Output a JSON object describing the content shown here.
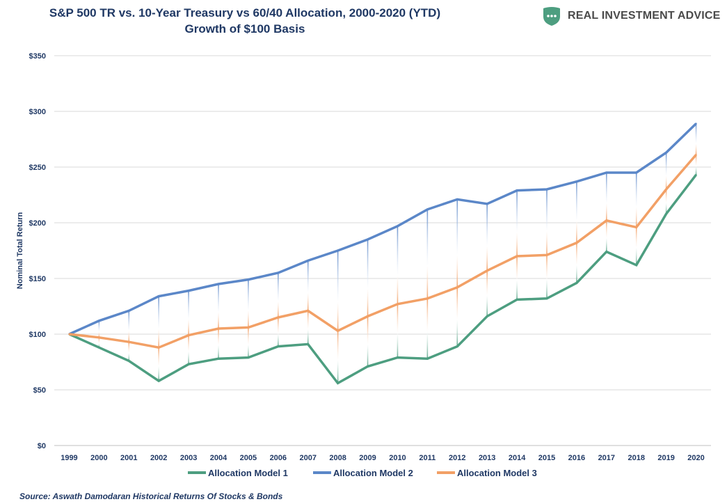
{
  "title_line1": "S&P 500 TR vs. 10-Year Treasury vs 60/40 Allocation, 2000-2020 (YTD)",
  "title_line2": "Growth of $100 Basis",
  "brand": "REAL INVESTMENT ADVICE",
  "source": "Source: Aswath Damodaran Historical Returns Of Stocks & Bonds",
  "colors": {
    "model1": "#4d9e80",
    "model2": "#5b87c8",
    "model3": "#f2a066",
    "title": "#1f3864",
    "grid": "#d9d9d9"
  },
  "chart_data": {
    "type": "line",
    "ylabel": "Nominal Total Return",
    "ylim": [
      0,
      350
    ],
    "yticks": [
      0,
      50,
      100,
      150,
      200,
      250,
      300,
      350
    ],
    "ytick_labels": [
      "$0",
      "$50",
      "$100",
      "$150",
      "$200",
      "$250",
      "$300",
      "$350"
    ],
    "categories": [
      "1999",
      "2000",
      "2001",
      "2002",
      "2003",
      "2004",
      "2005",
      "2006",
      "2007",
      "2008",
      "2009",
      "2010",
      "2011",
      "2012",
      "2013",
      "2014",
      "2015",
      "2016",
      "2017",
      "2018",
      "2019",
      "2020"
    ],
    "grid": "horizontal",
    "legend_position": "bottom",
    "drop_lines": true,
    "series": [
      {
        "name": "Allocation Model 1",
        "color": "#4d9e80",
        "values": [
          100,
          88,
          76,
          58,
          73,
          78,
          79,
          89,
          91,
          56,
          71,
          79,
          78,
          89,
          116,
          131,
          132,
          146,
          174,
          162,
          208,
          243
        ]
      },
      {
        "name": "Allocation Model 2",
        "color": "#5b87c8",
        "values": [
          100,
          112,
          121,
          134,
          139,
          145,
          149,
          155,
          166,
          175,
          185,
          197,
          212,
          221,
          217,
          229,
          230,
          237,
          245,
          245,
          263,
          289
        ]
      },
      {
        "name": "Allocation Model 3",
        "color": "#f2a066",
        "values": [
          100,
          97,
          93,
          88,
          99,
          105,
          106,
          115,
          121,
          103,
          116,
          127,
          132,
          142,
          157,
          170,
          171,
          182,
          202,
          196,
          230,
          261
        ]
      }
    ]
  }
}
